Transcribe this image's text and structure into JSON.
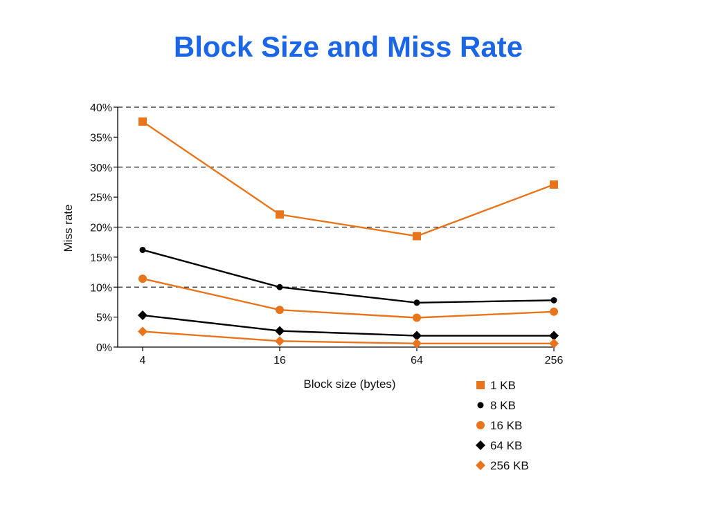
{
  "slide": {
    "title": "Block Size and Miss Rate"
  },
  "chart_data": {
    "type": "line",
    "xlabel": "Block size (bytes)",
    "ylabel": "Miss rate",
    "categories": [
      "4",
      "16",
      "64",
      "256"
    ],
    "y_ticks": [
      "0%",
      "5%",
      "10%",
      "15%",
      "20%",
      "25%",
      "30%",
      "35%",
      "40%"
    ],
    "ylim": [
      0,
      40
    ],
    "gridlines_at": [
      10,
      20,
      30,
      40
    ],
    "legend_position": "bottom-right",
    "series": [
      {
        "name": "1 KB",
        "marker": "square",
        "color": "#e8741c",
        "values": [
          37.6,
          22.1,
          18.5,
          27.1
        ]
      },
      {
        "name": "8 KB",
        "marker": "dot",
        "color": "#000000",
        "values": [
          16.2,
          10.0,
          7.4,
          7.8
        ]
      },
      {
        "name": "16 KB",
        "marker": "circle",
        "color": "#e8741c",
        "values": [
          11.4,
          6.2,
          4.9,
          5.9
        ]
      },
      {
        "name": "64 KB",
        "marker": "diamond",
        "color": "#000000",
        "values": [
          5.3,
          2.7,
          1.9,
          1.9
        ]
      },
      {
        "name": "256 KB",
        "marker": "diamond",
        "color": "#e8741c",
        "values": [
          2.6,
          1.0,
          0.6,
          0.6
        ]
      }
    ]
  }
}
